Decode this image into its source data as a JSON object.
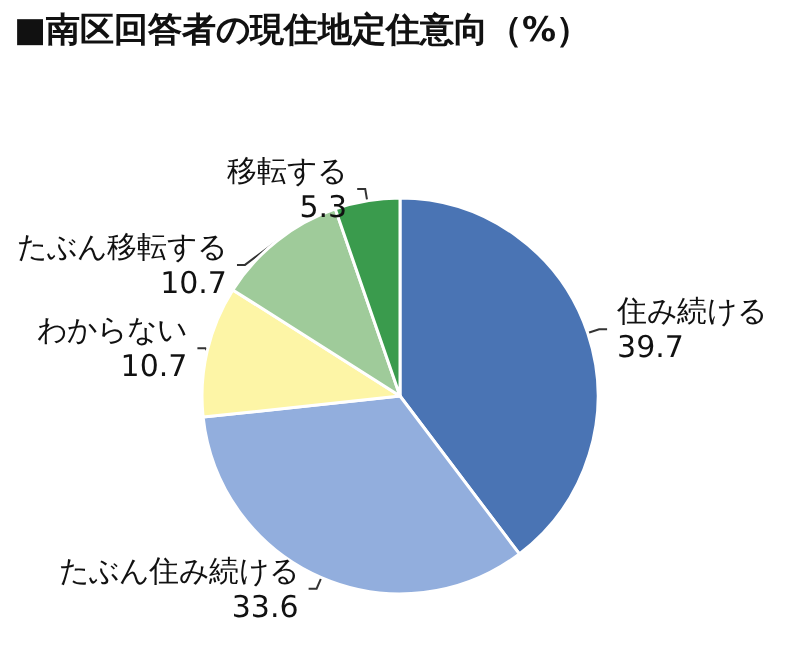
{
  "chart_data": {
    "type": "pie",
    "title": "■南区回答者の現住地定住意向（%）",
    "categories": [
      "住み続ける",
      "たぶん住み続ける",
      "わからない",
      "たぶん移転する",
      "移転する"
    ],
    "values": [
      39.7,
      33.6,
      10.7,
      10.7,
      5.3
    ],
    "colors": [
      "#4a74b4",
      "#92aedd",
      "#fdf5a6",
      "#9fcb9a",
      "#3a9b4d"
    ],
    "data_labels": true,
    "legend": false
  }
}
